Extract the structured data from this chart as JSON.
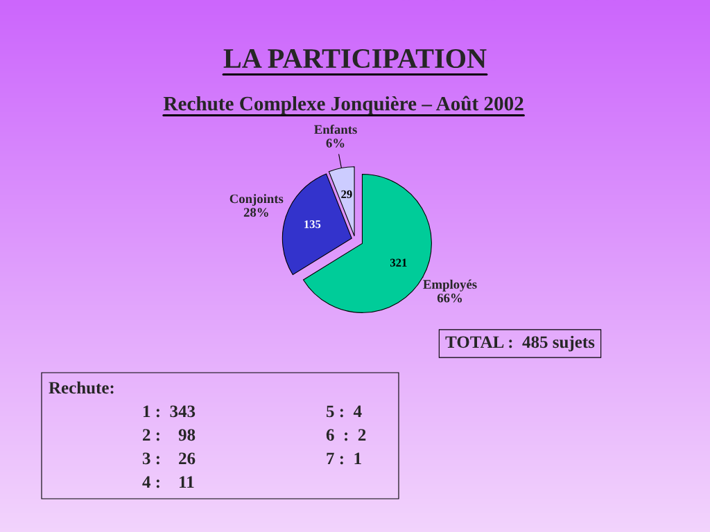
{
  "chart_data": {
    "type": "pie",
    "title": "LA PARTICIPATION",
    "subtitle": "Rechute Complexe Jonquière – Août 2002",
    "categories": [
      "Employés\n66%",
      "Conjoints\n28%",
      "Enfants\n6%"
    ],
    "values": [
      321,
      135,
      29
    ],
    "colors": [
      "#00cc99",
      "#3333cc",
      "#ccccff"
    ],
    "value_labels": [
      "321",
      "135",
      "29"
    ],
    "annotations": [
      "TOTAL :  485 sujets",
      "Rechute:",
      "1 :  343",
      "2 :    98",
      "3 :    26",
      "4 :    11",
      "5 :  4",
      "6  :  2",
      "7 :  1"
    ]
  }
}
